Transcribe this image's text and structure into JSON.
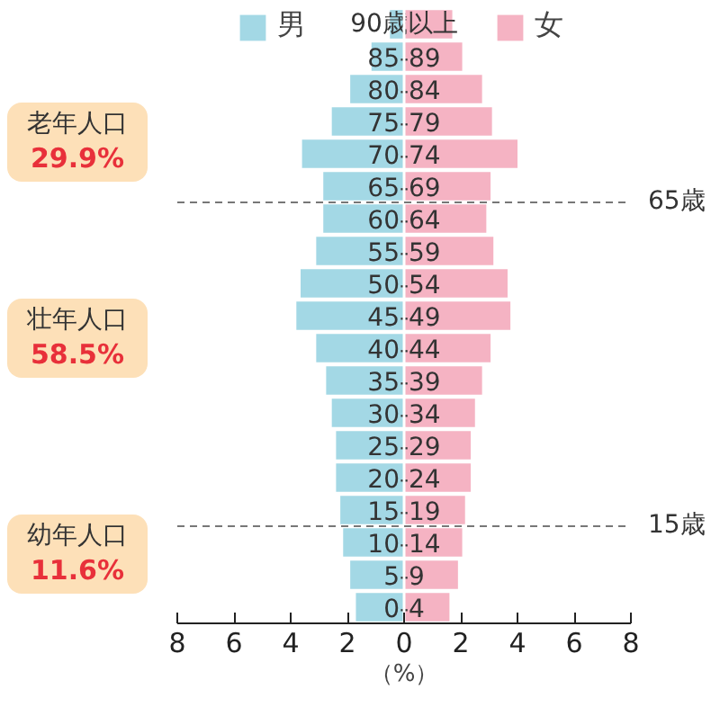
{
  "chart_data": {
    "type": "bar",
    "orientation": "horizontal",
    "xlabel": "（%）",
    "categories": [
      "90歳以上",
      "85-89",
      "80-84",
      "75-79",
      "70-74",
      "65-69",
      "60-64",
      "55-59",
      "50-54",
      "45-49",
      "40-44",
      "35-39",
      "30-34",
      "25-29",
      "20-24",
      "15-19",
      "10-14",
      "5-9",
      "0-4"
    ],
    "series": [
      {
        "name": "男",
        "color": "#a3d8e5",
        "values": [
          -0.5,
          -1.15,
          -1.9,
          -2.55,
          -3.6,
          -2.85,
          -2.85,
          -3.1,
          -3.65,
          -3.8,
          -3.1,
          -2.75,
          -2.55,
          -2.4,
          -2.4,
          -2.25,
          -2.15,
          -1.9,
          -1.7
        ]
      },
      {
        "name": "女",
        "color": "#f5b3c3",
        "values": [
          1.7,
          2.05,
          2.75,
          3.1,
          4.0,
          3.05,
          2.9,
          3.15,
          3.65,
          3.75,
          3.05,
          2.75,
          2.5,
          2.35,
          2.35,
          2.15,
          2.05,
          1.9,
          1.6
        ]
      }
    ],
    "xlim": [
      -8,
      8
    ],
    "xticks": [
      {
        "value": -8,
        "label": "8"
      },
      {
        "value": -6,
        "label": "6"
      },
      {
        "value": -4,
        "label": "4"
      },
      {
        "value": -2,
        "label": "2"
      },
      0,
      2,
      4,
      6,
      8
    ],
    "ref_lines": [
      {
        "axis": "y",
        "value": "65-69",
        "label": "65歳",
        "line_style": "dashed"
      },
      {
        "axis": "y",
        "value": "15-19",
        "label": "15歳",
        "line_style": "dashed"
      }
    ],
    "annotations": [
      "老年人口\n29.9%",
      "壮年人口\n58.5%",
      "幼年人口\n11.6%"
    ],
    "stacked": true,
    "legend": "top",
    "grid": false
  }
}
